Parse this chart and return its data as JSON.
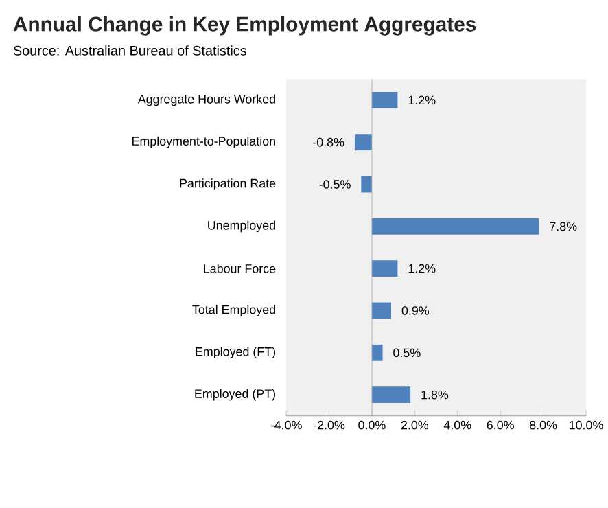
{
  "chart_data": {
    "type": "bar",
    "orientation": "horizontal",
    "title": "Annual Change in Key Employment Aggregates",
    "annotations": [
      "Source: Australian Bureau of Statistics"
    ],
    "categories": [
      "Aggregate Hours Worked",
      "Employment-to-Population",
      "Participation Rate",
      "Unemployed",
      "Labour Force",
      "Total Employed",
      "Employed (FT)",
      "Employed (PT)"
    ],
    "values": [
      1.2,
      -0.8,
      -0.5,
      7.8,
      1.2,
      0.9,
      0.5,
      1.8
    ],
    "value_labels": [
      "1.2%",
      "-0.8%",
      "-0.5%",
      "7.8%",
      "1.2%",
      "0.9%",
      "0.5%",
      "1.8%"
    ],
    "color": "#4f81bd",
    "xlim": [
      -4,
      10
    ],
    "xticks": [
      {
        "value": -4,
        "label": "-4.0%"
      },
      {
        "value": -2,
        "label": "-2.0%"
      },
      {
        "value": 0,
        "label": "0.0%"
      },
      {
        "value": 2,
        "label": "2.0%"
      },
      {
        "value": 4,
        "label": "4.0%"
      },
      {
        "value": 6,
        "label": "6.0%"
      },
      {
        "value": 8,
        "label": "8.0%"
      },
      {
        "value": 10,
        "label": "10.0%"
      }
    ],
    "ref_lines": [
      {
        "axis": "x",
        "value": 0,
        "color": "#a6a6a6"
      }
    ]
  }
}
